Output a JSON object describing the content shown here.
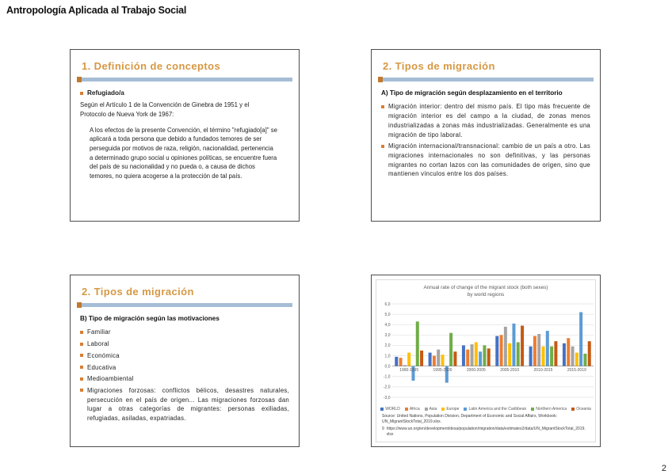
{
  "page": {
    "header_title": "Antropología Aplicada al Trabajo Social",
    "page_number": "2",
    "colors": {
      "title_orange": "#D69843",
      "divider_blue": "#A6BDD6",
      "bullet_orange": "#D97E33"
    }
  },
  "slides": {
    "s1": {
      "title": "1. Definición de conceptos",
      "term": "Refugiado/a",
      "intro": "Según el Artículo 1 de la Convención de Ginebra de 1951 y el Protocolo de Nueva York de 1967:",
      "quote": "A los efectos de la presente Convención, el término \"refugiado[a]\" se aplicará a toda persona que debido a fundados temores de ser perseguida por motivos de raza, religión, nacionalidad, pertenencia a determinado grupo social u opiniones políticas, se encuentre fuera del país de su nacionalidad y no pueda o, a causa de dichos temores, no quiera acogerse a la protección de tal país."
    },
    "s2": {
      "title": "2. Tipos de migración",
      "heading": "A) Tipo de migración según desplazamiento en el territorio",
      "bullets": [
        "Migración interior: dentro del mismo país. El tipo más frecuente de migración interior es del campo a la ciudad, de zonas menos industrializadas a zonas más industrializadas. Generalmente es una migración de tipo laboral.",
        "Migración internacional/transnacional: cambio de un país a otro. Las migraciones internacionales no son definitivas, y las personas migrantes no cortan lazos con las comunidades de origen, sino que mantienen vínculos entre los dos países."
      ]
    },
    "s3": {
      "title": "2. Tipos de migración",
      "heading": "B) Tipo de migración según las motivaciones",
      "bullets": [
        "Familiar",
        "Laboral",
        "Económica",
        "Educativa",
        "Medioambiental",
        "Migraciones forzosas: conflictos bélicos, desastres naturales, persecución en el país de origen... Las migraciones forzosas dan lugar a otras categorías de migrantes: personas exiliadas, refugiadas, asiladas, expatriadas."
      ]
    },
    "s4": {
      "chart_data": {
        "type": "bar",
        "title": "Annual rate of change of the migrant stock (both sexes) by world regions",
        "title_lines": [
          "Annual rate of change of the migrant stock (both sexes)",
          "by world regions"
        ],
        "categories": [
          "1990-1995",
          "1995-2000",
          "2000-2005",
          "2005-2010",
          "2010-2015",
          "2015-2019"
        ],
        "xlabel": "",
        "ylabel": "",
        "ylim": [
          -3,
          6
        ],
        "y_tick_step": 1,
        "y_tick_labels": [
          "6,0",
          "5,0",
          "4,0",
          "3,0",
          "2,0",
          "1,0",
          "0,0",
          "-1,0",
          "-2,0",
          "-3,0"
        ],
        "grid": true,
        "legend_position": "bottom",
        "series": [
          {
            "name": "WORLD",
            "color": "#4472C4",
            "values": [
              0.9,
              1.3,
              2.0,
              2.9,
              1.9,
              2.2
            ]
          },
          {
            "name": "Africa",
            "color": "#ED7D31",
            "values": [
              0.8,
              1.0,
              1.6,
              3.0,
              2.9,
              2.7
            ]
          },
          {
            "name": "Asia",
            "color": "#A5A5A5",
            "values": [
              0.1,
              1.6,
              2.1,
              3.8,
              3.1,
              1.9
            ]
          },
          {
            "name": "Europe",
            "color": "#FFC000",
            "values": [
              1.3,
              1.1,
              2.3,
              2.2,
              1.9,
              1.3
            ]
          },
          {
            "name": "Latin America and the Caribbean",
            "color": "#5B9BD5",
            "values": [
              -1.4,
              -1.6,
              1.4,
              4.1,
              3.4,
              5.2
            ]
          },
          {
            "name": "Northern America",
            "color": "#70AD47",
            "values": [
              4.3,
              3.2,
              2.0,
              2.3,
              1.9,
              1.2
            ]
          },
          {
            "name": "Oceania",
            "color": "#C55A11",
            "values": [
              1.5,
              1.4,
              1.7,
              3.9,
              2.4,
              2.4
            ]
          }
        ]
      },
      "source": "Source: United Nations, Population Division, Department of Economic and Social Affairs, Workbook: UN_MigrantStockTotal_2019.xlsx.",
      "footnote_mark": "9",
      "url": "https://www.un.org/en/development/desa/population/migration/data/estimates2/data/UN_MigrantStockTotal_2019.xlsx"
    }
  }
}
